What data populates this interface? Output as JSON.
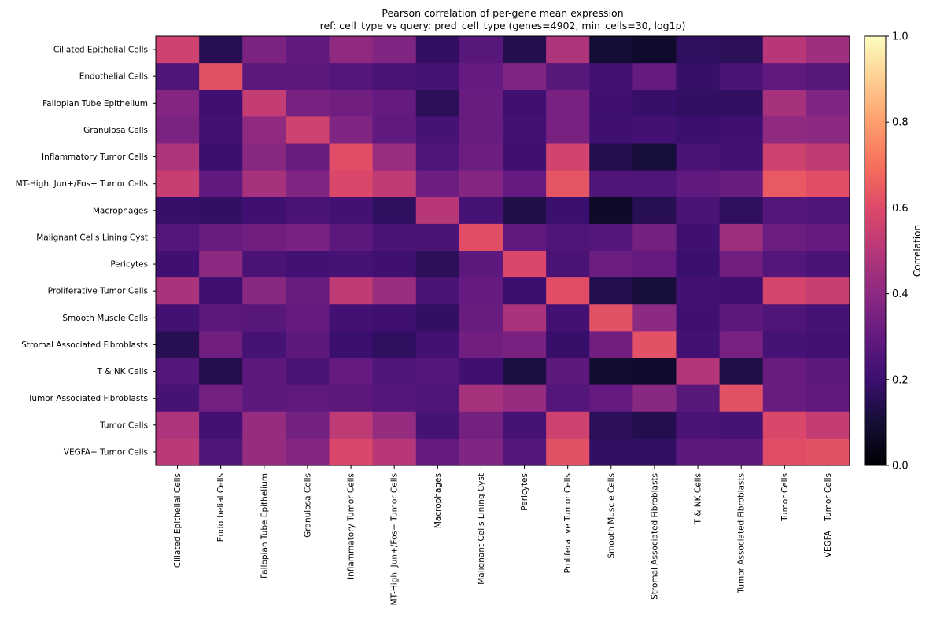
{
  "chart_data": {
    "type": "heatmap",
    "title": "Pearson correlation of per-gene mean expression",
    "subtitle": "ref: cell_type  vs  query: pred_cell_type  (genes=4902, min_cells=30, log1p)",
    "xlabel": "",
    "ylabel": "",
    "colorbar_label": "Correlation",
    "colormap": "magma",
    "vmin": 0.0,
    "vmax": 1.0,
    "colorbar_ticks": [
      "0.0",
      "0.2",
      "0.4",
      "0.6",
      "0.8",
      "1.0"
    ],
    "grid": false,
    "rows": [
      "Ciliated Epithelial Cells",
      "Endothelial Cells",
      "Fallopian Tube Epithelium",
      "Granulosa Cells",
      "Inflammatory Tumor Cells",
      "MT-High, Jun+/Fos+ Tumor Cells",
      "Macrophages",
      "Malignant Cells Lining Cyst",
      "Pericytes",
      "Proliferative Tumor Cells",
      "Smooth Muscle Cells",
      "Stromal Associated Fibroblasts",
      "T & NK Cells",
      "Tumor Associated Fibroblasts",
      "Tumor Cells",
      "VEGFA+ Tumor Cells"
    ],
    "columns": [
      "Ciliated Epithelial Cells",
      "Endothelial Cells",
      "Fallopian Tube Epithelium",
      "Granulosa Cells",
      "Inflammatory Tumor Cells",
      "MT-High, Jun+/Fos+ Tumor Cells",
      "Macrophages",
      "Malignant Cells Lining Cyst",
      "Pericytes",
      "Proliferative Tumor Cells",
      "Smooth Muscle Cells",
      "Stromal Associated Fibroblasts",
      "T & NK Cells",
      "Tumor Associated Fibroblasts",
      "Tumor Cells",
      "VEGFA+ Tumor Cells"
    ],
    "values": [
      [
        0.56,
        0.15,
        0.36,
        0.29,
        0.41,
        0.37,
        0.18,
        0.27,
        0.14,
        0.48,
        0.1,
        0.08,
        0.17,
        0.16,
        0.5,
        0.44
      ],
      [
        0.25,
        0.62,
        0.28,
        0.28,
        0.26,
        0.24,
        0.23,
        0.3,
        0.37,
        0.27,
        0.22,
        0.3,
        0.19,
        0.24,
        0.29,
        0.27
      ],
      [
        0.38,
        0.21,
        0.53,
        0.35,
        0.33,
        0.3,
        0.16,
        0.31,
        0.21,
        0.35,
        0.21,
        0.19,
        0.18,
        0.18,
        0.46,
        0.37
      ],
      [
        0.36,
        0.22,
        0.41,
        0.56,
        0.37,
        0.29,
        0.23,
        0.31,
        0.22,
        0.35,
        0.21,
        0.22,
        0.2,
        0.21,
        0.41,
        0.4
      ],
      [
        0.48,
        0.2,
        0.39,
        0.31,
        0.61,
        0.43,
        0.25,
        0.32,
        0.21,
        0.57,
        0.14,
        0.11,
        0.24,
        0.22,
        0.56,
        0.52
      ],
      [
        0.54,
        0.29,
        0.46,
        0.37,
        0.59,
        0.52,
        0.32,
        0.38,
        0.3,
        0.63,
        0.25,
        0.25,
        0.29,
        0.31,
        0.64,
        0.61
      ],
      [
        0.19,
        0.18,
        0.21,
        0.24,
        0.22,
        0.17,
        0.5,
        0.23,
        0.13,
        0.2,
        0.07,
        0.15,
        0.24,
        0.17,
        0.26,
        0.25
      ],
      [
        0.26,
        0.31,
        0.33,
        0.35,
        0.28,
        0.24,
        0.24,
        0.61,
        0.29,
        0.25,
        0.26,
        0.34,
        0.21,
        0.44,
        0.32,
        0.3
      ],
      [
        0.21,
        0.4,
        0.24,
        0.22,
        0.23,
        0.21,
        0.16,
        0.28,
        0.59,
        0.24,
        0.32,
        0.3,
        0.2,
        0.33,
        0.26,
        0.24
      ],
      [
        0.47,
        0.21,
        0.39,
        0.31,
        0.52,
        0.43,
        0.24,
        0.3,
        0.2,
        0.61,
        0.14,
        0.11,
        0.22,
        0.21,
        0.58,
        0.54
      ],
      [
        0.22,
        0.28,
        0.27,
        0.3,
        0.22,
        0.21,
        0.18,
        0.31,
        0.47,
        0.22,
        0.62,
        0.4,
        0.21,
        0.28,
        0.25,
        0.23
      ],
      [
        0.15,
        0.33,
        0.23,
        0.28,
        0.2,
        0.17,
        0.22,
        0.33,
        0.35,
        0.19,
        0.33,
        0.62,
        0.22,
        0.35,
        0.23,
        0.22
      ],
      [
        0.26,
        0.14,
        0.28,
        0.24,
        0.3,
        0.25,
        0.26,
        0.21,
        0.12,
        0.28,
        0.09,
        0.08,
        0.49,
        0.13,
        0.31,
        0.28
      ],
      [
        0.23,
        0.34,
        0.28,
        0.29,
        0.28,
        0.26,
        0.25,
        0.46,
        0.42,
        0.26,
        0.3,
        0.39,
        0.27,
        0.62,
        0.31,
        0.29
      ],
      [
        0.48,
        0.22,
        0.42,
        0.34,
        0.52,
        0.42,
        0.23,
        0.34,
        0.23,
        0.56,
        0.16,
        0.14,
        0.24,
        0.23,
        0.59,
        0.53
      ],
      [
        0.51,
        0.25,
        0.42,
        0.38,
        0.59,
        0.5,
        0.3,
        0.37,
        0.26,
        0.62,
        0.18,
        0.18,
        0.28,
        0.28,
        0.61,
        0.62
      ]
    ]
  }
}
